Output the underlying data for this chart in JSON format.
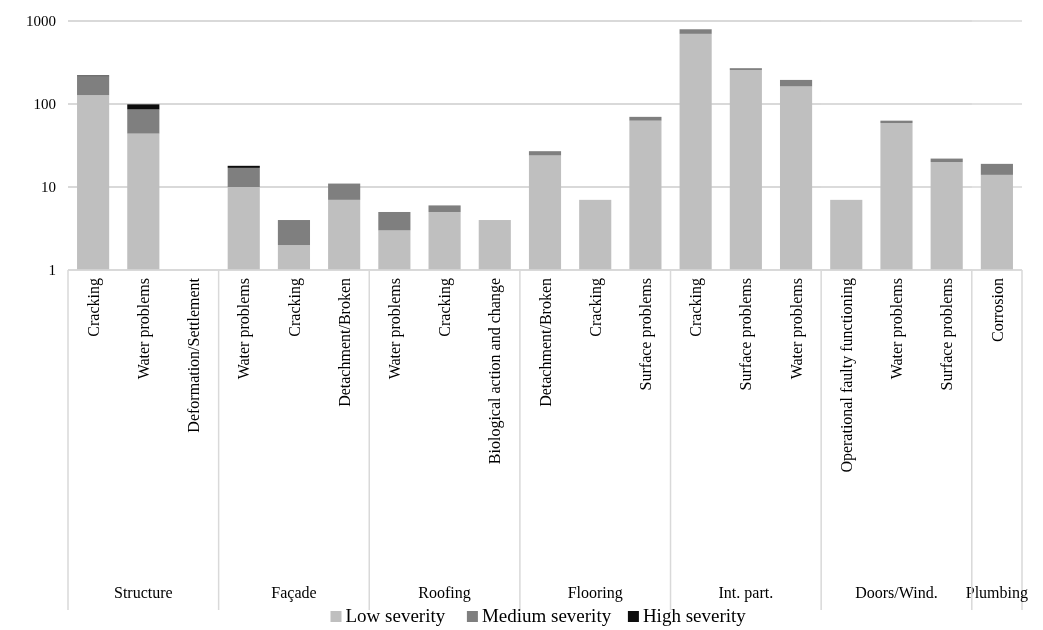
{
  "chart_data": [
    {
      "type": "bar",
      "stacked": true,
      "log": true,
      "xlabel": "Structure",
      "categories": [
        "Cracking",
        "Water problems",
        "Deformation/Settlement"
      ],
      "series": [
        {
          "name": "Low severity",
          "color": "#bfbfbf",
          "values": [
            128,
            44,
            null
          ]
        },
        {
          "name": "Medium severity",
          "color": "#7f7f7f",
          "values": [
            88,
            42,
            null
          ]
        },
        {
          "name": "High severity",
          "color": "#0d0d0d",
          "values": [
            5,
            13,
            null
          ]
        }
      ],
      "ylim": [
        1,
        1000
      ],
      "yticks": [
        1,
        10,
        100,
        1000
      ],
      "grid": "y",
      "legend": "bottom"
    },
    {
      "type": "bar",
      "stacked": true,
      "log": true,
      "xlabel": "Façade",
      "categories": [
        "Water problems",
        "Cracking",
        "Detachment/Broken"
      ],
      "series": [
        {
          "color": "#bfbfbf",
          "values": [
            10,
            2,
            7
          ]
        },
        {
          "color": "#7f7f7f",
          "values": [
            7,
            2,
            4
          ]
        },
        {
          "color": "#0d0d0d",
          "values": [
            1,
            null,
            null
          ]
        }
      ],
      "ylim": [
        1,
        1000
      ],
      "yticks": [
        1,
        10,
        100,
        1000
      ],
      "grid": "y",
      "tick_labels": "x"
    },
    {
      "type": "bar",
      "stacked": true,
      "log": true,
      "xlabel": "Roofing",
      "categories": [
        "Water problems",
        "Cracking",
        "Biological action and change"
      ],
      "series": [
        {
          "color": "#bfbfbf",
          "values": [
            3,
            5,
            4
          ]
        },
        {
          "color": "#7f7f7f",
          "values": [
            2,
            1,
            null
          ]
        }
      ],
      "ylim": [
        1,
        1000
      ],
      "yticks": [
        1,
        10,
        100,
        1000
      ],
      "grid": "y",
      "tick_labels": "x"
    },
    {
      "type": "bar",
      "stacked": true,
      "log": true,
      "xlabel": "Flooring",
      "categories": [
        "Detachment/Broken",
        "Cracking",
        "Surface problems"
      ],
      "series": [
        {
          "color": "#bfbfbf",
          "values": [
            24,
            7,
            63
          ]
        },
        {
          "color": "#7f7f7f",
          "values": [
            3,
            null,
            7
          ]
        }
      ],
      "ylim": [
        1,
        1000
      ],
      "yticks": [
        1,
        10,
        100,
        1000
      ],
      "grid": "y",
      "tick_labels": "x"
    },
    {
      "type": "bar",
      "stacked": true,
      "log": true,
      "xlabel": "Int. part.",
      "categories": [
        "Cracking",
        "Surface problems",
        "Water problems"
      ],
      "series": [
        {
          "color": "#bfbfbf",
          "values": [
            700,
            257,
            163
          ]
        },
        {
          "color": "#7f7f7f",
          "values": [
            95,
            13,
            32
          ]
        }
      ],
      "ylim": [
        1,
        1000
      ],
      "yticks": [
        1,
        10,
        100,
        1000
      ],
      "grid": "y",
      "tick_labels": "x"
    },
    {
      "type": "bar",
      "stacked": true,
      "log": true,
      "xlabel": "Doors/Wind.",
      "categories": [
        "Operational faulty functioning",
        "Water problems",
        "Surface problems"
      ],
      "series": [
        {
          "color": "#bfbfbf",
          "values": [
            7,
            59,
            20
          ]
        },
        {
          "color": "#7f7f7f",
          "values": [
            null,
            4,
            2
          ]
        }
      ],
      "ylim": [
        1,
        1000
      ],
      "yticks": [
        1,
        10,
        100,
        1000
      ],
      "grid": "y",
      "tick_labels": "x"
    },
    {
      "type": "bar",
      "stacked": true,
      "log": true,
      "xlabel": "Plumbing",
      "categories": [
        "Corrosion"
      ],
      "series": [
        {
          "color": "#bfbfbf",
          "values": [
            14
          ]
        },
        {
          "color": "#7f7f7f",
          "values": [
            5
          ]
        }
      ],
      "ylim": [
        1,
        1000
      ],
      "yticks": [
        1,
        10,
        100,
        1000
      ],
      "grid": "y",
      "tick_labels": "x"
    }
  ]
}
